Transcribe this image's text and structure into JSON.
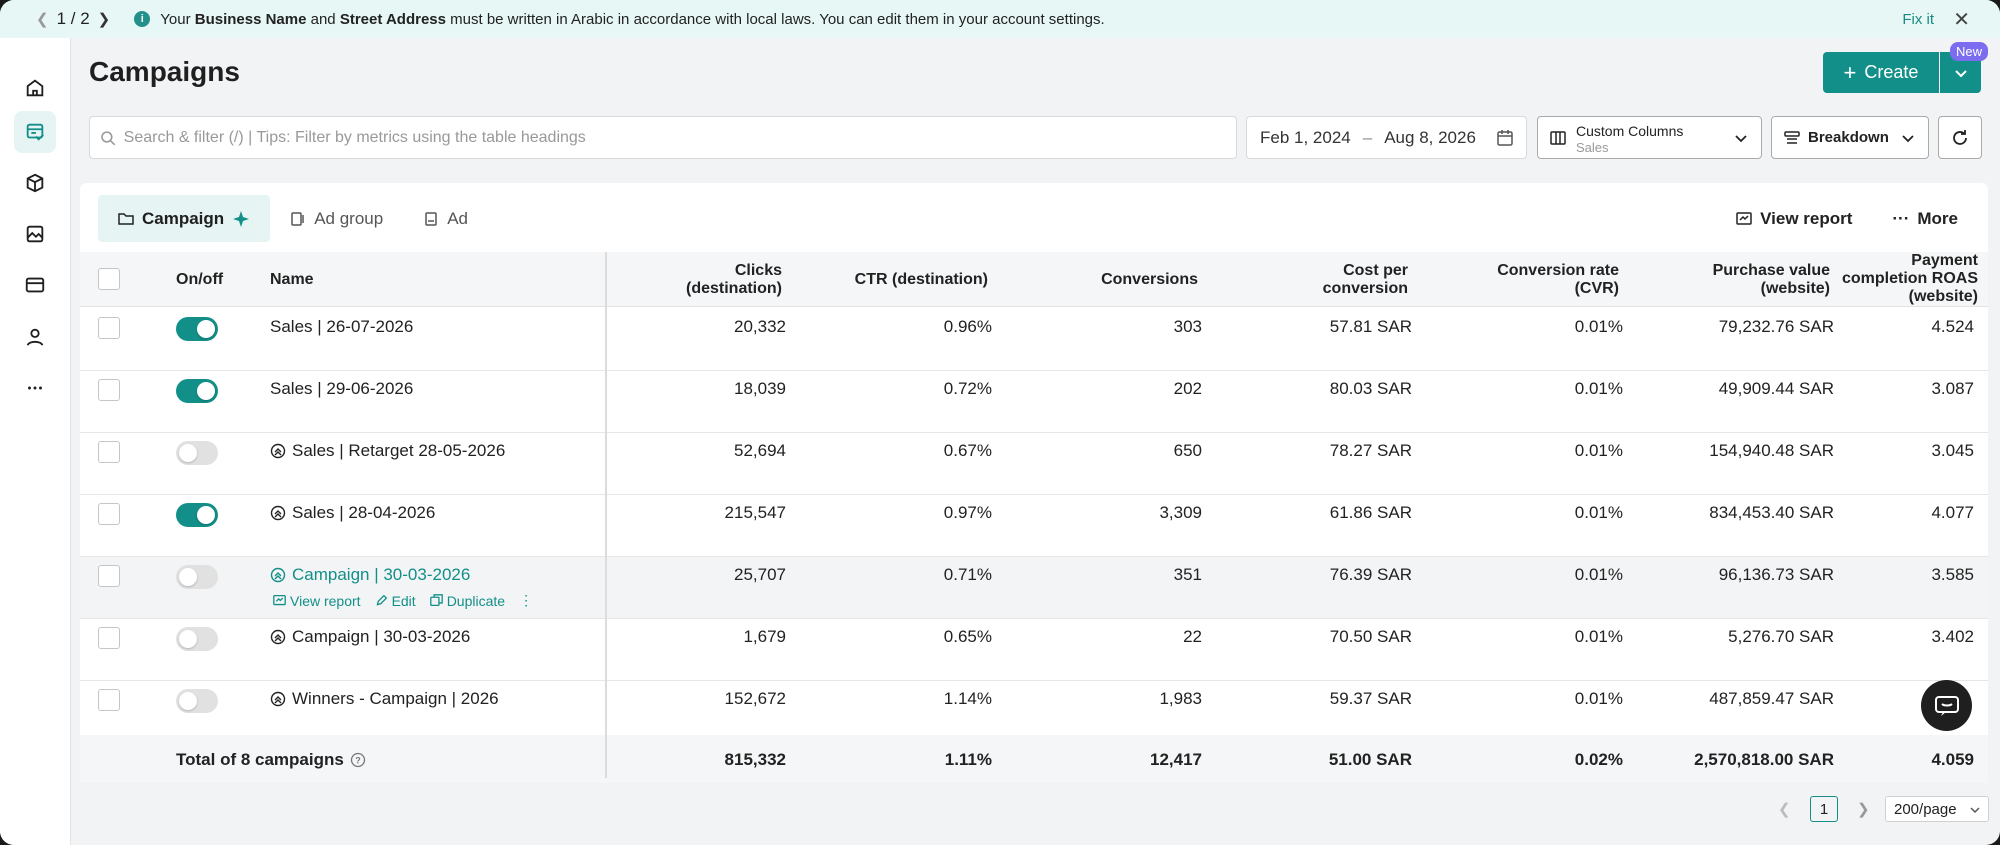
{
  "notice": {
    "pager": "1 / 2",
    "message_part1": "Your ",
    "message_bold1": "Business Name",
    "message_part2": " and ",
    "message_bold2": "Street Address",
    "message_part3": " must be written in Arabic in accordance with local laws. You can edit them in your account settings.",
    "fix_label": "Fix it"
  },
  "rail": {
    "items": [
      "home-icon",
      "campaigns-icon",
      "catalog-icon",
      "creative-icon",
      "wallet-icon",
      "account-icon",
      "more-icon"
    ]
  },
  "header": {
    "title": "Campaigns",
    "create_label": "Create",
    "new_badge": "New"
  },
  "filters": {
    "search_placeholder": "Search & filter (/) | Tips: Filter by metrics using the table headings",
    "date_start": "Feb 1, 2024",
    "date_sep": "–",
    "date_end": "Aug 8, 2026",
    "columns_label": "Custom Columns",
    "columns_value": "Sales",
    "breakdown_label": "Breakdown"
  },
  "tabs": [
    "Campaign",
    "Ad group",
    "Ad"
  ],
  "toolbar": {
    "view_report": "View report",
    "more": "More"
  },
  "columns": {
    "onoff": "On/off",
    "name": "Name",
    "clicks_1": "Clicks",
    "clicks_2": "(destination)",
    "ctr": "CTR (destination)",
    "conversions": "Conversions",
    "cpc_1": "Cost per",
    "cpc_2": "conversion",
    "cvr_1": "Conversion rate",
    "cvr_2": "(CVR)",
    "pv_1": "Purchase value",
    "pv_2": "(website)",
    "roas_1": "Payment",
    "roas_2": "completion ROAS",
    "roas_3": "(website)"
  },
  "rows": [
    {
      "on": true,
      "icon": false,
      "name": "Sales | 26-07-2026",
      "clicks": "20,332",
      "ctr": "0.96%",
      "conv": "303",
      "cpc": "57.81 SAR",
      "cvr": "0.01%",
      "pv": "79,232.76 SAR",
      "roas": "4.524"
    },
    {
      "on": true,
      "icon": false,
      "name": "Sales | 29-06-2026",
      "clicks": "18,039",
      "ctr": "0.72%",
      "conv": "202",
      "cpc": "80.03 SAR",
      "cvr": "0.01%",
      "pv": "49,909.44 SAR",
      "roas": "3.087"
    },
    {
      "on": false,
      "icon": true,
      "name": "Sales | Retarget 28-05-2026",
      "clicks": "52,694",
      "ctr": "0.67%",
      "conv": "650",
      "cpc": "78.27 SAR",
      "cvr": "0.01%",
      "pv": "154,940.48 SAR",
      "roas": "3.045"
    },
    {
      "on": true,
      "icon": true,
      "name": "Sales | 28-04-2026",
      "clicks": "215,547",
      "ctr": "0.97%",
      "conv": "3,309",
      "cpc": "61.86 SAR",
      "cvr": "0.01%",
      "pv": "834,453.40 SAR",
      "roas": "4.077"
    },
    {
      "on": false,
      "icon": true,
      "name": "Campaign | 30-03-2026",
      "clicks": "25,707",
      "ctr": "0.71%",
      "conv": "351",
      "cpc": "76.39 SAR",
      "cvr": "0.01%",
      "pv": "96,136.73 SAR",
      "roas": "3.585"
    },
    {
      "on": false,
      "icon": true,
      "name": "Campaign | 30-03-2026",
      "clicks": "1,679",
      "ctr": "0.65%",
      "conv": "22",
      "cpc": "70.50 SAR",
      "cvr": "0.01%",
      "pv": "5,276.70 SAR",
      "roas": "3.402"
    },
    {
      "on": false,
      "icon": true,
      "name": "Winners - Campaign | 2026",
      "clicks": "152,672",
      "ctr": "1.14%",
      "conv": "1,983",
      "cpc": "59.37 SAR",
      "cvr": "0.01%",
      "pv": "487,859.47 SAR",
      "roas": ""
    }
  ],
  "row_actions": {
    "view_report": "View report",
    "edit": "Edit",
    "duplicate": "Duplicate"
  },
  "total": {
    "label": "Total of 8 campaigns",
    "clicks": "815,332",
    "ctr": "1.11%",
    "conv": "12,417",
    "cpc": "51.00 SAR",
    "cvr": "0.02%",
    "pv": "2,570,818.00 SAR",
    "roas": "4.059"
  },
  "pagination": {
    "current": "1",
    "per_page": "200/page"
  },
  "colors": {
    "accent": "#128f88",
    "badge": "#7b6cf0",
    "notice_bg": "#e6f7f6"
  }
}
